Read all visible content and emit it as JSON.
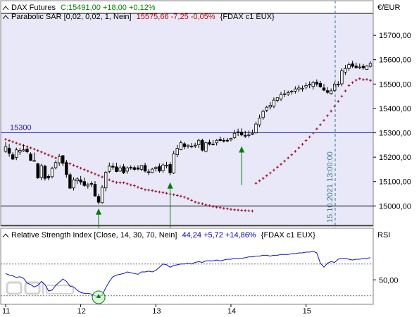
{
  "chart_data": [
    {
      "type": "candlestick",
      "title": "DAX Futures",
      "ylim": [
        14920,
        15790
      ],
      "y_ticks": [
        15000,
        15100,
        15200,
        15300,
        15400,
        15500,
        15600,
        15700
      ],
      "y_tick_labels": [
        "15000,00",
        "15100,00",
        "15200,00",
        "15300,00",
        "15400,00",
        "15500,00",
        "15600,00",
        "15700,00"
      ],
      "y_unit": "€/EUR",
      "legend": {
        "line1": {
          "name": "DAX Futures",
          "last_text": "C:15491,00 +18,00 +0,12%"
        },
        "line2": {
          "name": "Parabolic SAR [0,02, 0,02, 1, Nein]",
          "value_text": "15575,66 -7,25 -0,05%",
          "symbol_text": "{FDAX c1 EUX}"
        }
      },
      "horizontal_lines": [
        {
          "label": "15300",
          "y": 15300
        },
        {
          "label": "",
          "y": 15000
        }
      ],
      "date_marker": {
        "label": "15.10.2021 13:00:00"
      },
      "x_ticks": [
        {
          "label": "11",
          "index": 0
        },
        {
          "label": "12",
          "index": 21
        },
        {
          "label": "13",
          "index": 42
        },
        {
          "label": "14",
          "index": 63
        },
        {
          "label": "15",
          "index": 84
        }
      ],
      "series": [
        {
          "name": "DAX Futures",
          "kind": "ohlc",
          "close": [
            15243,
            15216,
            15192,
            15230,
            15228,
            15230,
            15222,
            15187,
            15186,
            15115,
            15165,
            15113,
            15115,
            15154,
            15178,
            15203,
            15175,
            15129,
            15073,
            15107,
            15111,
            15098,
            15084,
            15087,
            15089,
            15041,
            15015,
            15076,
            15138,
            15163,
            15159,
            15141,
            15156,
            15136,
            15156,
            15157,
            15150,
            15151,
            15166,
            15143,
            15137,
            15151,
            15158,
            15143,
            15168,
            15167,
            15136,
            15214,
            15236,
            15259,
            15243,
            15249,
            15245,
            15249,
            15269,
            15229,
            15259,
            15253,
            15253,
            15269,
            15268,
            15267,
            15267,
            15277,
            15298,
            15301,
            15291,
            15288,
            15292,
            15298,
            15336,
            15360,
            15388,
            15405,
            15413,
            15434,
            15444,
            15457,
            15460,
            15465,
            15471,
            15480,
            15484,
            15483,
            15494,
            15497,
            15506,
            15500,
            15489,
            15475,
            15466,
            15472,
            15500,
            15498,
            15554,
            15564,
            15580,
            15573,
            15568,
            15570,
            15566,
            15574,
            15585
          ],
          "open": [
            15224,
            15237,
            15210,
            15199,
            15221,
            15226,
            15233,
            15213,
            15185,
            15173,
            15117,
            15163,
            15121,
            15120,
            15157,
            15177,
            15206,
            15177,
            15128,
            15074,
            15103,
            15107,
            15100,
            15082,
            15092,
            15089,
            15039,
            15013,
            15074,
            15142,
            15163,
            15160,
            15143,
            15161,
            15143,
            15158,
            15157,
            15156,
            15150,
            15166,
            15140,
            15137,
            15153,
            15162,
            15145,
            15165,
            15170,
            15135,
            15210,
            15231,
            15255,
            15245,
            15245,
            15247,
            15251,
            15269,
            15224,
            15261,
            15254,
            15259,
            15273,
            15269,
            15269,
            15271,
            15280,
            15304,
            15303,
            15289,
            15291,
            15294,
            15300,
            15333,
            15363,
            15393,
            15406,
            15409,
            15433,
            15439,
            15457,
            15459,
            15470,
            15471,
            15479,
            15480,
            15488,
            15499,
            15490,
            15508,
            15503,
            15484,
            15473,
            15461,
            15474,
            15500,
            15501,
            15549,
            15564,
            15583,
            15574,
            15569,
            15573,
            15560,
            15573
          ],
          "high": [
            15262,
            15254,
            15220,
            15239,
            15238,
            15253,
            15247,
            15220,
            15219,
            15177,
            15173,
            15169,
            15130,
            15161,
            15187,
            15213,
            15209,
            15189,
            15136,
            15118,
            15118,
            15123,
            15116,
            15095,
            15101,
            15102,
            15050,
            15085,
            15143,
            15178,
            15177,
            15177,
            15167,
            15172,
            15162,
            15167,
            15165,
            15167,
            15168,
            15177,
            15151,
            15156,
            15163,
            15174,
            15175,
            15181,
            15180,
            15226,
            15250,
            15268,
            15262,
            15252,
            15258,
            15259,
            15276,
            15276,
            15263,
            15272,
            15270,
            15274,
            15285,
            15279,
            15279,
            15280,
            15312,
            15317,
            15318,
            15308,
            15309,
            15313,
            15346,
            15375,
            15395,
            15411,
            15426,
            15445,
            15445,
            15468,
            15475,
            15473,
            15475,
            15491,
            15496,
            15494,
            15506,
            15511,
            15513,
            15519,
            15513,
            15500,
            15487,
            15482,
            15509,
            15512,
            15565,
            15579,
            15589,
            15595,
            15588,
            15584,
            15583,
            15577,
            15593
          ],
          "low": [
            15218,
            15202,
            15188,
            15188,
            15209,
            15222,
            15216,
            15184,
            15183,
            15111,
            15106,
            15104,
            15105,
            15113,
            15150,
            15164,
            15164,
            15116,
            15069,
            15063,
            15090,
            15087,
            15078,
            15071,
            15077,
            15037,
            15006,
            15010,
            15060,
            15134,
            15149,
            15138,
            15140,
            15131,
            15132,
            15148,
            15144,
            15146,
            15144,
            15137,
            15127,
            15134,
            15141,
            15136,
            15136,
            15154,
            15126,
            15131,
            15200,
            15228,
            15232,
            15236,
            15237,
            15238,
            15238,
            15223,
            15220,
            15248,
            15248,
            15248,
            15265,
            15260,
            15262,
            15265,
            15275,
            15287,
            15286,
            15279,
            15280,
            15290,
            15295,
            15323,
            15354,
            15385,
            15396,
            15401,
            15425,
            15431,
            15446,
            15452,
            15457,
            15461,
            15467,
            15469,
            15478,
            15483,
            15478,
            15490,
            15485,
            15471,
            15460,
            15457,
            15468,
            15488,
            15491,
            15537,
            15554,
            15566,
            15562,
            15561,
            15559,
            15558,
            15567
          ]
        },
        {
          "name": "Parabolic SAR",
          "kind": "dots",
          "values": [
            15273,
            15268,
            15263,
            15258,
            15253,
            15248,
            15243,
            15238,
            15233,
            15227,
            15221,
            15215,
            15209,
            15203,
            15197,
            15191,
            15185,
            15179,
            15173,
            15167,
            15161,
            15155,
            15149,
            15143,
            15137,
            15131,
            15125,
            15119,
            15113,
            15107,
            15101,
            15096,
            15095,
            15095,
            15091,
            15086,
            15083,
            15077,
            15072,
            15066,
            15065,
            15063,
            15060,
            15057,
            15055,
            15052,
            15049,
            15046,
            15043,
            15040,
            15036,
            15030,
            15023,
            15016,
            15012,
            15009,
            15004,
            15001,
            14998,
            14995,
            14993,
            14990,
            14988,
            14986,
            14984,
            14983,
            14982,
            14981,
            14980,
            14979,
            15093,
            15103,
            15113,
            15124,
            15135,
            15147,
            15159,
            15171,
            15184,
            15197,
            15210,
            15224,
            15238,
            15253,
            15268,
            15283,
            15299,
            15316,
            15333,
            15351,
            15370,
            15389,
            15409,
            15429,
            15450,
            15472,
            15494,
            15506,
            15516,
            15522,
            15518,
            15519,
            15515
          ]
        }
      ],
      "signals": [
        {
          "index": 26,
          "tip": 14990,
          "base": 14893
        },
        {
          "index": 46,
          "tip": 15097,
          "base": 14893
        },
        {
          "index": 66,
          "tip": 15245,
          "base": 15085
        }
      ]
    },
    {
      "type": "line",
      "title": "Relative Strength Index",
      "legend": {
        "name": "Relative Strength Index [Close, 14, 30, 70, Nein]",
        "value_text": "44,24 +5,72 +14,86%",
        "symbol_text": "{FDAX c1 EUX}"
      },
      "y_unit": "RSI",
      "ylim": [
        20,
        100
      ],
      "y_ticks": [
        50
      ],
      "y_tick_labels": [
        "50,00"
      ],
      "reference_lines": [
        30,
        70
      ],
      "highlight": {
        "index": 26
      },
      "series": [
        {
          "name": "RSI",
          "values": [
            58,
            56,
            55,
            53,
            54,
            52,
            46,
            44,
            41,
            43,
            48,
            44,
            36,
            37,
            43,
            47,
            51,
            48,
            42,
            41,
            37,
            34,
            33,
            33,
            32,
            30,
            28,
            31,
            40,
            48,
            54,
            56,
            57,
            58,
            60,
            59,
            58,
            57,
            60,
            60,
            61,
            60,
            62,
            66,
            70,
            69,
            66,
            68,
            69,
            70,
            70,
            71,
            70,
            72,
            73,
            72,
            74,
            74,
            74,
            75,
            74,
            75,
            76,
            76,
            77,
            77,
            77,
            78,
            79,
            79,
            80,
            80,
            81,
            81,
            80,
            81,
            81,
            82,
            82,
            82,
            83,
            83,
            84,
            84,
            85,
            85,
            86,
            84,
            71,
            66,
            71,
            73,
            72,
            76,
            77,
            77,
            76,
            75,
            76,
            76,
            77,
            77,
            78
          ]
        }
      ]
    }
  ]
}
